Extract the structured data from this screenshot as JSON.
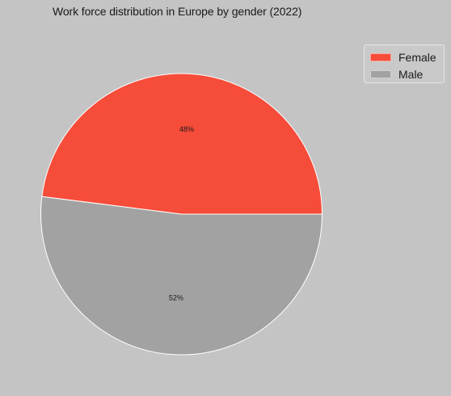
{
  "chart_data": {
    "type": "pie",
    "title": "Work force distribution in Europe by gender (2022)",
    "categories": [
      "Female",
      "Male"
    ],
    "values": [
      48,
      52
    ],
    "labels": [
      "48%",
      "52%"
    ],
    "colors": [
      "#f64c3a",
      "#a2a2a2"
    ],
    "legend_position": "top-right"
  }
}
